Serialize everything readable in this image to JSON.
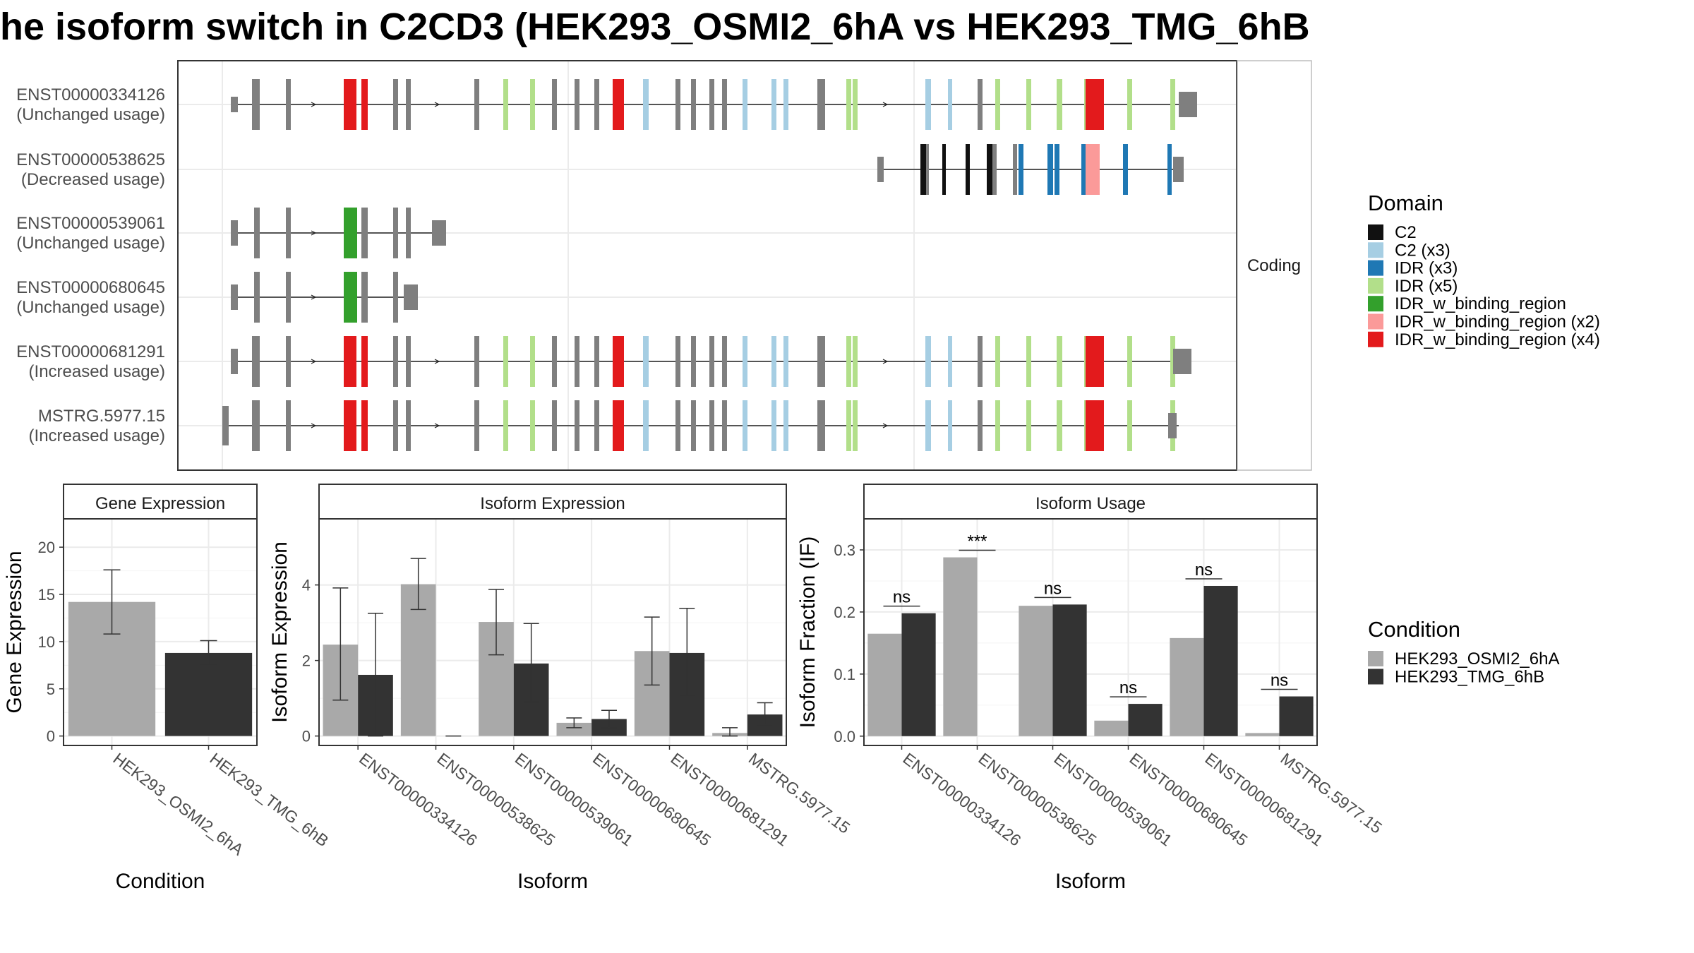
{
  "title": "he isoform switch in C2CD3 (HEK293_OSMI2_6hA vs HEK293_TMG_6hB",
  "colors": {
    "cond_a": "#a9a9a9",
    "cond_b": "#333333",
    "exon_gray": "#7f7f7f",
    "panel_border": "#333333",
    "grid": "#ebebeb"
  },
  "chart_data": [
    {
      "type": "gene_structure",
      "facet_label": "Coding",
      "isoforms": [
        {
          "id": "ENST00000334126",
          "usage": "(Unchanged usage)"
        },
        {
          "id": "ENST00000538625",
          "usage": "(Decreased usage)"
        },
        {
          "id": "ENST00000539061",
          "usage": "(Unchanged usage)"
        },
        {
          "id": "ENST00000680645",
          "usage": "(Unchanged usage)"
        },
        {
          "id": "ENST00000681291",
          "usage": "(Increased usage)"
        },
        {
          "id": "MSTRG.5977.15",
          "usage": "(Increased usage)"
        }
      ],
      "legend": {
        "title": "Domain",
        "items": [
          {
            "label": "C2",
            "color": "#111111"
          },
          {
            "label": "C2 (x3)",
            "color": "#a6cee3"
          },
          {
            "label": "IDR (x3)",
            "color": "#1f78b4"
          },
          {
            "label": "IDR (x5)",
            "color": "#b2df8a"
          },
          {
            "label": "IDR_w_binding_region",
            "color": "#33a02c"
          },
          {
            "label": "IDR_w_binding_region (x2)",
            "color": "#fb9a99"
          },
          {
            "label": "IDR_w_binding_region (x4)",
            "color": "#e31a1c"
          }
        ]
      }
    },
    {
      "type": "bar",
      "facet_label": "Gene Expression",
      "xlabel": "Condition",
      "ylabel": "Gene Expression",
      "categories": [
        "HEK293_OSMI2_6hA",
        "HEK293_TMG_6hB"
      ],
      "values": [
        14.2,
        8.8
      ],
      "error": [
        [
          10.8,
          17.6
        ],
        [
          7.6,
          10.1
        ]
      ],
      "yticks": [
        0,
        5,
        10,
        15,
        20
      ],
      "ylim": [
        -1,
        23
      ]
    },
    {
      "type": "bar",
      "facet_label": "Isoform Expression",
      "xlabel": "Isoform",
      "ylabel": "Isoform Expression",
      "categories": [
        "ENST00000334126",
        "ENST00000538625",
        "ENST00000539061",
        "ENST00000680645",
        "ENST00000681291",
        "MSTRG.5977.15"
      ],
      "series": [
        {
          "name": "HEK293_OSMI2_6hA",
          "values": [
            2.42,
            4.02,
            3.02,
            0.35,
            2.25,
            0.08
          ],
          "error": [
            [
              0.95,
              3.92
            ],
            [
              3.35,
              4.7
            ],
            [
              2.15,
              3.88
            ],
            [
              0.22,
              0.48
            ],
            [
              1.35,
              3.15
            ],
            [
              0.0,
              0.22
            ]
          ]
        },
        {
          "name": "HEK293_TMG_6hB",
          "values": [
            1.62,
            0.0,
            1.92,
            0.45,
            2.2,
            0.57
          ],
          "error": [
            [
              0.0,
              3.25
            ],
            [
              0.0,
              0.0
            ],
            [
              0.9,
              2.98
            ],
            [
              0.22,
              0.68
            ],
            [
              1.05,
              3.38
            ],
            [
              0.3,
              0.88
            ]
          ]
        }
      ],
      "yticks": [
        0,
        2,
        4
      ],
      "ylim": [
        -0.25,
        5.75
      ]
    },
    {
      "type": "bar",
      "facet_label": "Isoform Usage",
      "xlabel": "Isoform",
      "ylabel": "Isoform Fraction (IF)",
      "categories": [
        "ENST00000334126",
        "ENST00000538625",
        "ENST00000539061",
        "ENST00000680645",
        "ENST00000681291",
        "MSTRG.5977.15"
      ],
      "series": [
        {
          "name": "HEK293_OSMI2_6hA",
          "values": [
            0.165,
            0.288,
            0.21,
            0.025,
            0.158,
            0.005
          ]
        },
        {
          "name": "HEK293_TMG_6hB",
          "values": [
            0.198,
            0.0,
            0.212,
            0.052,
            0.242,
            0.064
          ]
        }
      ],
      "annotations": [
        "ns",
        "***",
        "ns",
        "ns",
        "ns",
        "ns"
      ],
      "yticks": [
        "0.0",
        "0.1",
        "0.2",
        "0.3"
      ],
      "ytick_values": [
        0,
        0.1,
        0.2,
        0.3
      ],
      "ylim": [
        -0.015,
        0.35
      ],
      "legend": {
        "title": "Condition",
        "items": [
          "HEK293_OSMI2_6hA",
          "HEK293_TMG_6hB"
        ]
      }
    }
  ]
}
